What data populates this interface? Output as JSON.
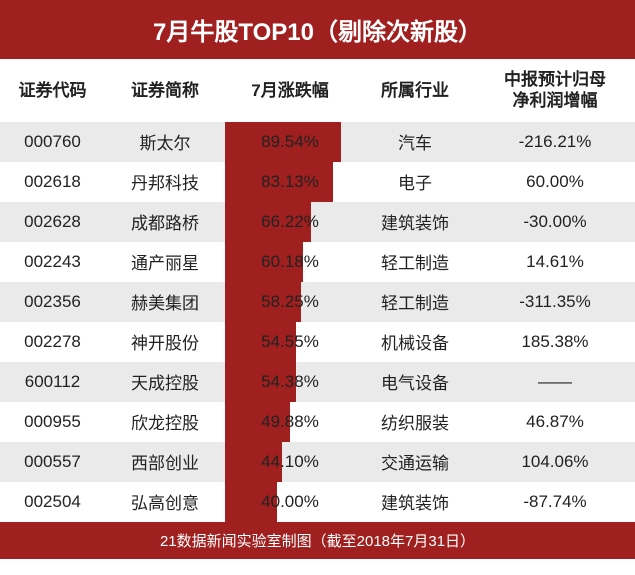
{
  "title": "7月牛股TOP10（剔除次新股）",
  "footer": "21数据新闻实验室制图（截至2018年7月31日）",
  "colors": {
    "header_bg": "#a02020",
    "header_text": "#ffffff",
    "bar_fill": "#a02020",
    "row_even_bg": "#eaeaea",
    "row_odd_bg": "#ffffff",
    "text": "#222222"
  },
  "table": {
    "type": "table-with-bar",
    "bar_column_index": 2,
    "bar_max_value": 100,
    "columns": [
      "证券代码",
      "证券简称",
      "7月涨跌幅",
      "所属行业",
      "中报预计归母\n净利润增幅"
    ],
    "rows": [
      {
        "code": "000760",
        "name": "斯太尔",
        "change_num": 89.54,
        "change": "89.54%",
        "industry": "汽车",
        "profit": "-216.21%"
      },
      {
        "code": "002618",
        "name": "丹邦科技",
        "change_num": 83.13,
        "change": "83.13%",
        "industry": "电子",
        "profit": "60.00%"
      },
      {
        "code": "002628",
        "name": "成都路桥",
        "change_num": 66.22,
        "change": "66.22%",
        "industry": "建筑装饰",
        "profit": "-30.00%"
      },
      {
        "code": "002243",
        "name": "通产丽星",
        "change_num": 60.18,
        "change": "60.18%",
        "industry": "轻工制造",
        "profit": "14.61%"
      },
      {
        "code": "002356",
        "name": "赫美集团",
        "change_num": 58.25,
        "change": "58.25%",
        "industry": "轻工制造",
        "profit": "-311.35%"
      },
      {
        "code": "002278",
        "name": "神开股份",
        "change_num": 54.55,
        "change": "54.55%",
        "industry": "机械设备",
        "profit": "185.38%"
      },
      {
        "code": "600112",
        "name": "天成控股",
        "change_num": 54.38,
        "change": "54.38%",
        "industry": "电气设备",
        "profit": "——"
      },
      {
        "code": "000955",
        "name": "欣龙控股",
        "change_num": 49.88,
        "change": "49.88%",
        "industry": "纺织服装",
        "profit": "46.87%"
      },
      {
        "code": "000557",
        "name": "西部创业",
        "change_num": 44.1,
        "change": "44.10%",
        "industry": "交通运输",
        "profit": "104.06%"
      },
      {
        "code": "002504",
        "name": "弘高创意",
        "change_num": 40.0,
        "change": "40.00%",
        "industry": "建筑装饰",
        "profit": "-87.74%"
      }
    ]
  }
}
